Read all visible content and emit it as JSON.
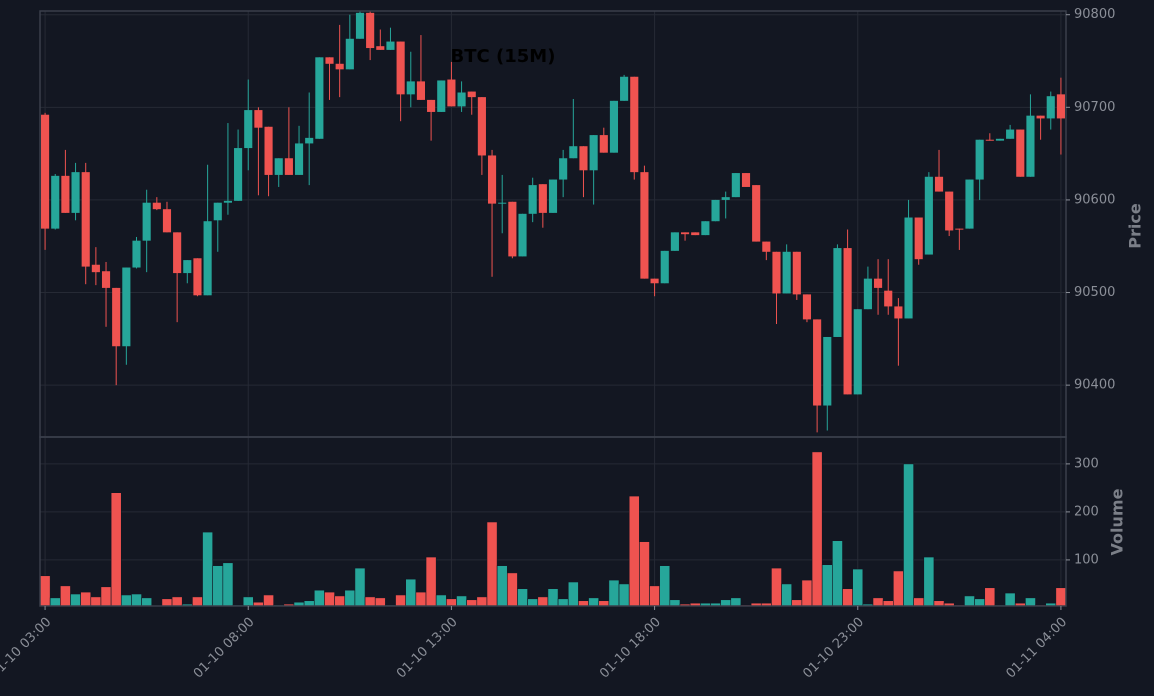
{
  "chart_data": {
    "type": "candlestick",
    "title": "BTC (15M)",
    "ylabel": "Price",
    "volume_label": "Volume",
    "up_color": "#26a69a",
    "down_color": "#ef5350",
    "grid": true,
    "open": [
      90692,
      90569,
      90626,
      90586,
      90630,
      90530,
      90523,
      90505,
      90442,
      90527,
      90556,
      90597,
      90590,
      90565,
      90521,
      90537,
      90497,
      90578,
      90597,
      90599,
      90656,
      90697,
      90679,
      90627,
      90645,
      90627,
      90661,
      90666,
      90754,
      90747,
      90741,
      90774,
      90802,
      90766,
      90762,
      90771,
      90714,
      90728,
      90708,
      90695,
      90730,
      90701,
      90717,
      90711,
      90648,
      90596,
      90598,
      90539,
      90585,
      90617,
      90586,
      90622,
      90645,
      90658,
      90632,
      90670,
      90651,
      90707,
      90733,
      90630,
      90515,
      90510,
      90545,
      90565,
      90565,
      90562,
      90577,
      90600,
      90603,
      90629,
      90616,
      90555,
      90544,
      90499,
      90544,
      90498,
      90471,
      90378,
      90452,
      90548,
      90390,
      90482,
      90515,
      90502,
      90485,
      90472,
      90581,
      90541,
      90625,
      90609,
      90569,
      90569,
      90622,
      90665,
      90664,
      90666,
      90676,
      90625,
      90691,
      90688,
      90714
    ],
    "high": [
      90694,
      90628,
      90654,
      90640,
      90640,
      90549,
      90533,
      90505,
      90527,
      90560,
      90611,
      90603,
      90598,
      90565,
      90535,
      90537,
      90638,
      90597,
      90683,
      90676,
      90730,
      90700,
      90679,
      90645,
      90700,
      90680,
      90716,
      90754,
      90754,
      90789,
      90800,
      90810,
      90812,
      90784,
      90786,
      90771,
      90760,
      90778,
      90708,
      90729,
      90749,
      90728,
      90717,
      90711,
      90654,
      90627,
      90598,
      90585,
      90624,
      90617,
      90622,
      90654,
      90709,
      90658,
      90670,
      90678,
      90707,
      90735,
      90733,
      90637,
      90515,
      90545,
      90565,
      90565,
      90565,
      90577,
      90600,
      90609,
      90629,
      90629,
      90616,
      90555,
      90544,
      90552,
      90544,
      90498,
      90471,
      90452,
      90552,
      90568,
      90482,
      90528,
      90536,
      90536,
      90494,
      90600,
      90581,
      90630,
      90654,
      90609,
      90569,
      90622,
      90665,
      90672,
      90666,
      90681,
      90676,
      90714,
      90691,
      90717,
      90732
    ],
    "low": [
      90546,
      90568,
      90586,
      90578,
      90509,
      90508,
      90463,
      90400,
      90422,
      90526,
      90522,
      90589,
      90565,
      90468,
      90510,
      90496,
      90497,
      90544,
      90584,
      90599,
      90632,
      90605,
      90604,
      90614,
      90627,
      90627,
      90616,
      90666,
      90708,
      90711,
      90741,
      90774,
      90751,
      90762,
      90762,
      90685,
      90700,
      90708,
      90664,
      90695,
      90701,
      90695,
      90692,
      90627,
      90517,
      90564,
      90537,
      90539,
      90576,
      90570,
      90586,
      90603,
      90645,
      90603,
      90595,
      90651,
      90651,
      90707,
      90622,
      90515,
      90496,
      90510,
      90545,
      90556,
      90562,
      90562,
      90577,
      90580,
      90603,
      90614,
      90555,
      90535,
      90466,
      90499,
      90492,
      90468,
      90349,
      90351,
      90452,
      90390,
      90390,
      90482,
      90476,
      90476,
      90421,
      90472,
      90530,
      90541,
      90609,
      90561,
      90546,
      90569,
      90600,
      90664,
      90664,
      90666,
      90625,
      90625,
      90665,
      90676,
      90649
    ],
    "close": [
      90569,
      90626,
      90586,
      90630,
      90528,
      90522,
      90505,
      90442,
      90527,
      90556,
      90597,
      90590,
      90565,
      90521,
      90535,
      90497,
      90577,
      90597,
      90599,
      90656,
      90697,
      90678,
      90627,
      90645,
      90627,
      90661,
      90667,
      90754,
      90747,
      90741,
      90774,
      90802,
      90764,
      90762,
      90771,
      90714,
      90728,
      90708,
      90695,
      90729,
      90701,
      90716,
      90711,
      90648,
      90596,
      90597,
      90539,
      90585,
      90616,
      90586,
      90622,
      90645,
      90658,
      90632,
      90670,
      90651,
      90707,
      90733,
      90630,
      90515,
      90510,
      90545,
      90565,
      90563,
      90562,
      90577,
      90600,
      90603,
      90629,
      90614,
      90555,
      90544,
      90499,
      90544,
      90498,
      90471,
      90378,
      90452,
      90548,
      90390,
      90482,
      90515,
      90505,
      90485,
      90472,
      90581,
      90536,
      90625,
      90609,
      90567,
      90568,
      90622,
      90665,
      90664,
      90666,
      90676,
      90625,
      90691,
      90688,
      90712,
      90688
    ],
    "volume": [
      67,
      21,
      46,
      29,
      33,
      23,
      44,
      240,
      27,
      29,
      21,
      5,
      19,
      23,
      8,
      23,
      158,
      88,
      94,
      6,
      23,
      12,
      27,
      6,
      8,
      12,
      15,
      37,
      33,
      25,
      37,
      83,
      23,
      21,
      6,
      27,
      60,
      33,
      106,
      27,
      19,
      25,
      17,
      23,
      179,
      88,
      73,
      40,
      19,
      23,
      40,
      19,
      54,
      15,
      21,
      15,
      58,
      50,
      233,
      138,
      46,
      88,
      17,
      8,
      10,
      10,
      10,
      17,
      21,
      6,
      10,
      10,
      83,
      50,
      17,
      58,
      325,
      90,
      140,
      40,
      81,
      8,
      21,
      15,
      77,
      300,
      21,
      106,
      15,
      10,
      6,
      25,
      19,
      42,
      6,
      31,
      10,
      21,
      6,
      10,
      42
    ],
    "xlim": [
      -0.5,
      100.5
    ],
    "xticks": [
      {
        "value": 0,
        "label": "01-10 03:00"
      },
      {
        "value": 20,
        "label": "01-10 08:00"
      },
      {
        "value": 40,
        "label": "01-10 13:00"
      },
      {
        "value": 60,
        "label": "01-10 18:00"
      },
      {
        "value": 80,
        "label": "01-10 23:00"
      },
      {
        "value": 100,
        "label": "01-11 04:00"
      }
    ],
    "ylim": [
      90344,
      90804
    ],
    "yticks": [
      90400,
      90500,
      90600,
      90700,
      90800
    ],
    "volume_ylim": [
      4,
      356
    ],
    "volume_yticks": [
      100,
      200,
      300
    ]
  }
}
